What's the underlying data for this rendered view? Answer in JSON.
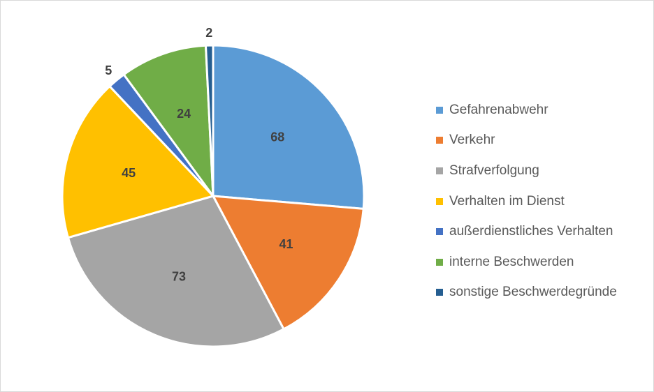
{
  "chart_data": {
    "type": "pie",
    "legend_position": "right",
    "slices": [
      {
        "label": "Gefahrenabwehr",
        "value": 68,
        "color": "#5B9BD5"
      },
      {
        "label": "Verkehr",
        "value": 41,
        "color": "#ED7D31"
      },
      {
        "label": "Strafverfolgung",
        "value": 73,
        "color": "#A5A5A5"
      },
      {
        "label": "Verhalten im Dienst",
        "value": 45,
        "color": "#FFC000"
      },
      {
        "label": "außerdienstliches Verhalten",
        "value": 5,
        "color": "#4472C4"
      },
      {
        "label": "interne Beschwerden",
        "value": 24,
        "color": "#70AD47"
      },
      {
        "label": "sonstige Beschwerdegründe",
        "value": 2,
        "color": "#255E91"
      }
    ]
  }
}
